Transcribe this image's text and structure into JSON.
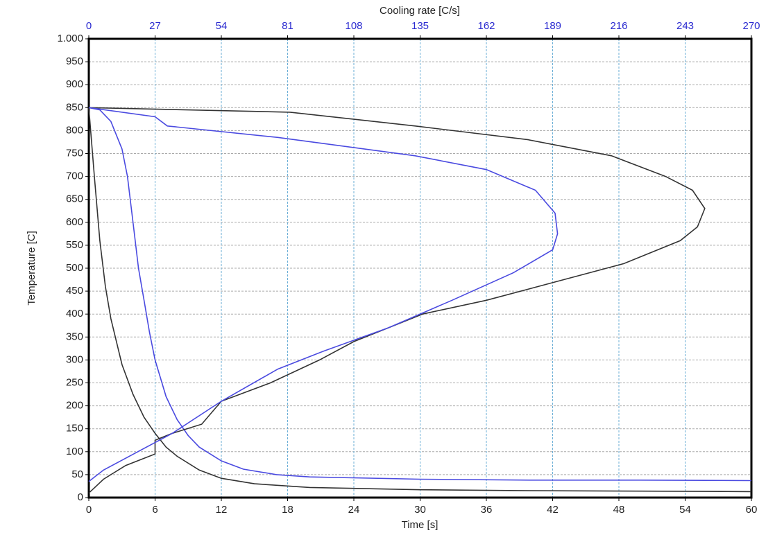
{
  "chart_data": {
    "type": "line",
    "xlabel": "Time [s]",
    "x2label": "Cooling rate [C/s]",
    "ylabel": "Temperature [C]",
    "xlim": [
      0,
      60
    ],
    "xticks": [
      0,
      6,
      12,
      18,
      24,
      30,
      36,
      42,
      48,
      54,
      60
    ],
    "x2lim": [
      0,
      270
    ],
    "x2ticks": [
      0,
      27,
      54,
      81,
      108,
      135,
      162,
      189,
      216,
      243,
      270
    ],
    "x2color": "#2a2ad0",
    "ylim": [
      0,
      1000
    ],
    "yticks": [
      0,
      50,
      100,
      150,
      200,
      250,
      300,
      350,
      400,
      450,
      500,
      550,
      600,
      650,
      700,
      750,
      800,
      850,
      900,
      950,
      {
        "value": 1000,
        "label": "1.000"
      }
    ],
    "grid": true,
    "series": [
      {
        "color": "#333333",
        "axis": "x",
        "x": [
          0,
          0.5,
          1,
          1.5,
          2,
          3,
          4,
          5,
          6,
          7,
          8,
          10,
          12,
          15,
          20,
          30,
          40,
          50,
          60
        ],
        "values": [
          850,
          700,
          560,
          460,
          390,
          290,
          225,
          175,
          140,
          110,
          90,
          60,
          42,
          30,
          22,
          17,
          15,
          14,
          13
        ]
      },
      {
        "color": "#4a4ae0",
        "axis": "x",
        "x": [
          0,
          1,
          2,
          3,
          3.5,
          4,
          4.5,
          5,
          5.5,
          6,
          7,
          8,
          9,
          10,
          12,
          14,
          17,
          20,
          30,
          40,
          50,
          60
        ],
        "values": [
          850,
          845,
          820,
          760,
          700,
          600,
          500,
          430,
          360,
          300,
          220,
          170,
          135,
          110,
          80,
          62,
          50,
          45,
          40,
          38,
          38,
          37
        ]
      },
      {
        "color": "#333333",
        "axis": "x2",
        "x": [
          0,
          82,
          133,
          179,
          213,
          235,
          246,
          251,
          248,
          241,
          218,
          190,
          162,
          136,
          122,
          108,
          94,
          74,
          54,
          46,
          34,
          27,
          27,
          15,
          6,
          2,
          0
        ],
        "values": [
          850,
          840,
          810,
          780,
          745,
          700,
          670,
          630,
          590,
          560,
          510,
          470,
          430,
          400,
          370,
          340,
          300,
          250,
          210,
          160,
          140,
          125,
          95,
          70,
          40,
          20,
          10
        ]
      },
      {
        "color": "#4a4ae0",
        "axis": "x2",
        "x": [
          0,
          27,
          32,
          77,
          133,
          162,
          182,
          190,
          191,
          189,
          173,
          148,
          122,
          96,
          77,
          54,
          34,
          20,
          6,
          0
        ],
        "values": [
          850,
          830,
          810,
          785,
          745,
          715,
          670,
          620,
          575,
          540,
          490,
          430,
          370,
          320,
          280,
          210,
          140,
          100,
          60,
          35
        ]
      }
    ]
  }
}
